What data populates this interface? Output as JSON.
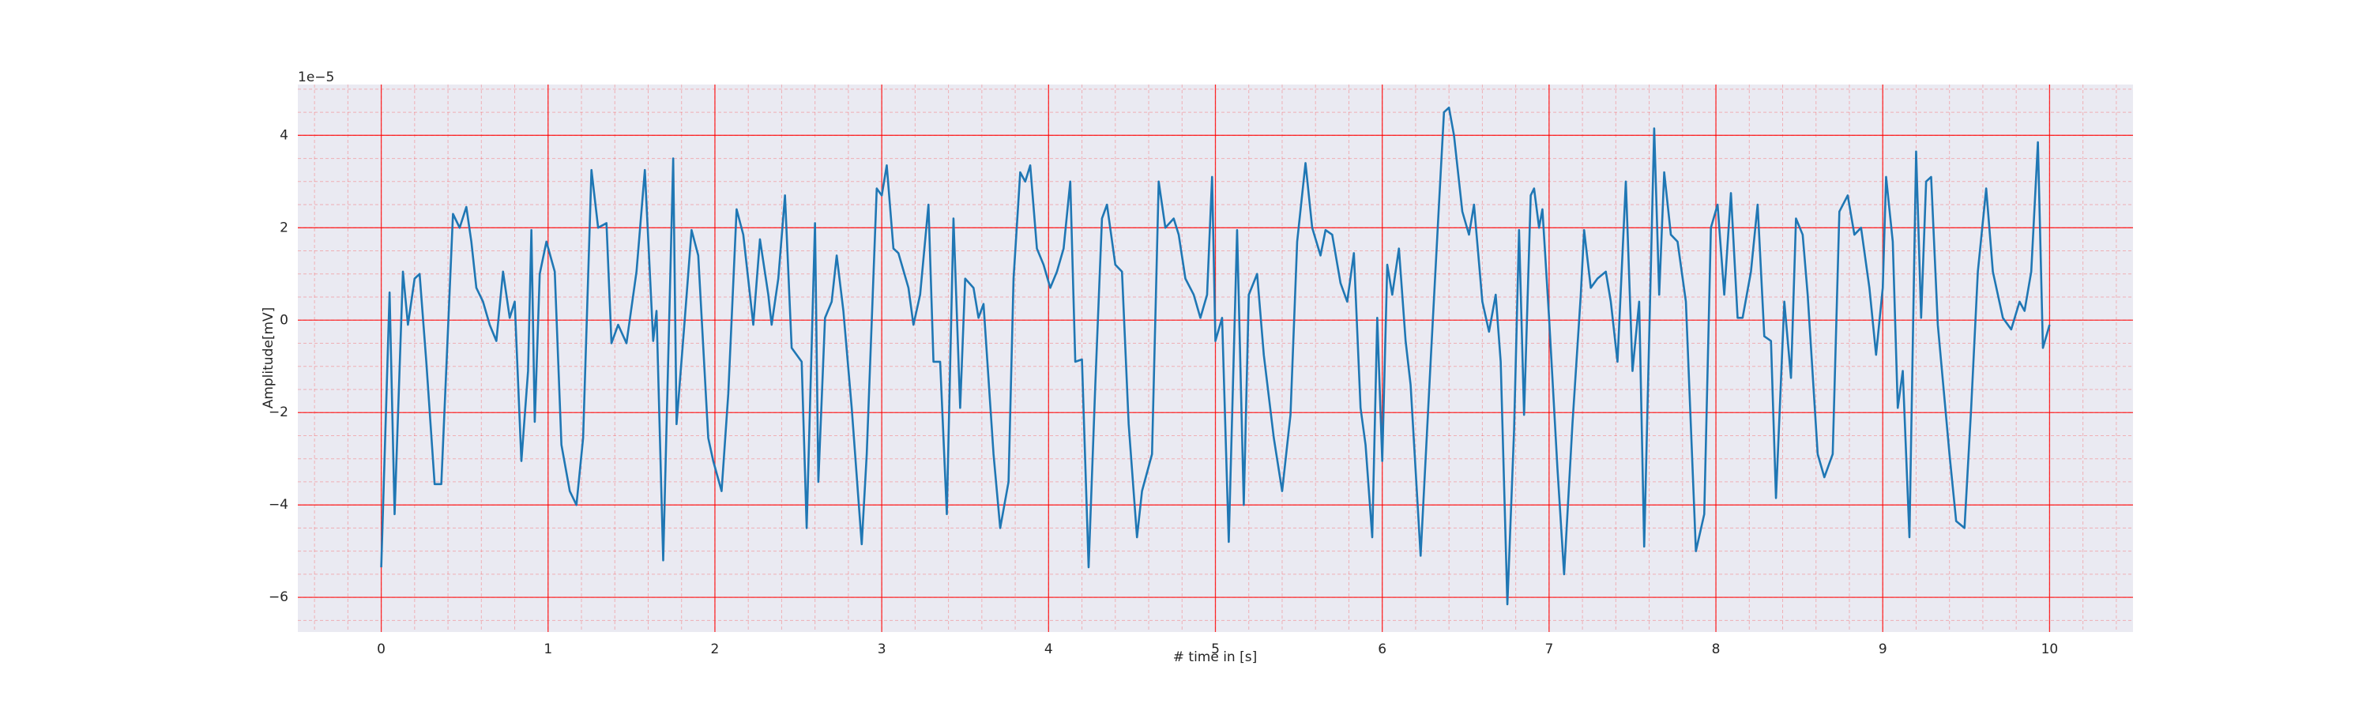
{
  "chart_data": {
    "type": "line",
    "xlabel": "# time in [s]",
    "ylabel": "Amplitude[mV]",
    "y_offset_label": "1e−5",
    "color": "#1f77b4",
    "grid": true,
    "grid_color": "#ff0000",
    "minor_grid": {
      "x_divisions": 5,
      "y_divisions": 4
    },
    "xlim": [
      -0.5,
      10.5
    ],
    "ylim": [
      -6.75,
      5.1
    ],
    "xticks": [
      0,
      1,
      2,
      3,
      4,
      5,
      6,
      7,
      8,
      9,
      10
    ],
    "yticks": [
      {
        "value": -6,
        "label": "−6"
      },
      {
        "value": -4,
        "label": "−4"
      },
      {
        "value": -2,
        "label": "−2"
      },
      0,
      2,
      4
    ],
    "x": [
      0,
      0.05,
      0.08,
      0.13,
      0.16,
      0.2,
      0.23,
      0.27,
      0.32,
      0.36,
      0.43,
      0.47,
      0.51,
      0.54,
      0.57,
      0.61,
      0.65,
      0.69,
      0.73,
      0.77,
      0.8,
      0.84,
      0.88,
      0.9,
      0.92,
      0.95,
      0.99,
      1.04,
      1.08,
      1.13,
      1.17,
      1.21,
      1.26,
      1.3,
      1.35,
      1.38,
      1.42,
      1.47,
      1.53,
      1.58,
      1.63,
      1.65,
      1.69,
      1.75,
      1.77,
      1.82,
      1.86,
      1.9,
      1.96,
      1.99,
      2.04,
      2.08,
      2.13,
      2.17,
      2.23,
      2.27,
      2.32,
      2.34,
      2.38,
      2.42,
      2.46,
      2.49,
      2.52,
      2.55,
      2.6,
      2.62,
      2.66,
      2.7,
      2.73,
      2.77,
      2.82,
      2.88,
      2.91,
      2.97,
      3.0,
      3.03,
      3.07,
      3.1,
      3.16,
      3.19,
      3.23,
      3.28,
      3.31,
      3.35,
      3.39,
      3.43,
      3.47,
      3.5,
      3.55,
      3.58,
      3.61,
      3.67,
      3.71,
      3.76,
      3.79,
      3.83,
      3.86,
      3.89,
      3.93,
      3.97,
      4.01,
      4.05,
      4.09,
      4.13,
      4.16,
      4.2,
      4.24,
      4.28,
      4.32,
      4.35,
      4.4,
      4.44,
      4.48,
      4.53,
      4.56,
      4.62,
      4.66,
      4.7,
      4.75,
      4.78,
      4.82,
      4.87,
      4.91,
      4.95,
      4.98,
      5.0,
      5.04,
      5.08,
      5.13,
      5.17,
      5.2,
      5.25,
      5.29,
      5.35,
      5.4,
      5.45,
      5.49,
      5.54,
      5.58,
      5.63,
      5.66,
      5.7,
      5.75,
      5.79,
      5.83,
      5.87,
      5.9,
      5.94,
      5.97,
      6.0,
      6.03,
      6.06,
      6.1,
      6.14,
      6.17,
      6.23,
      6.29,
      6.34,
      6.37,
      6.4,
      6.43,
      6.48,
      6.52,
      6.55,
      6.6,
      6.64,
      6.68,
      6.71,
      6.75,
      6.79,
      6.82,
      6.85,
      6.89,
      6.91,
      6.94,
      6.96,
      7.0,
      7.05,
      7.09,
      7.14,
      7.19,
      7.21,
      7.25,
      7.29,
      7.34,
      7.37,
      7.41,
      7.46,
      7.5,
      7.54,
      7.57,
      7.63,
      7.66,
      7.69,
      7.73,
      7.77,
      7.82,
      7.88,
      7.93,
      7.97,
      8.01,
      8.05,
      8.09,
      8.13,
      8.16,
      8.21,
      8.25,
      8.29,
      8.33,
      8.36,
      8.41,
      8.45,
      8.48,
      8.52,
      8.55,
      8.61,
      8.65,
      8.7,
      8.74,
      8.79,
      8.83,
      8.87,
      8.92,
      8.96,
      9.0,
      9.02,
      9.06,
      9.09,
      9.12,
      9.16,
      9.2,
      9.23,
      9.26,
      9.29,
      9.33,
      9.4,
      9.44,
      9.49,
      9.53,
      9.57,
      9.62,
      9.66,
      9.72,
      9.77,
      9.82,
      9.85,
      9.89,
      9.93,
      9.96,
      10.0
    ],
    "values": [
      -5.35,
      0.6,
      -4.2,
      1.05,
      -0.1,
      0.9,
      1.0,
      -0.9,
      -3.55,
      -3.55,
      2.3,
      2.0,
      2.45,
      1.7,
      0.7,
      0.4,
      -0.1,
      -0.45,
      1.05,
      0.05,
      0.4,
      -3.05,
      -1.1,
      1.95,
      -2.2,
      1.0,
      1.7,
      1.05,
      -2.7,
      -3.7,
      -4.0,
      -2.55,
      3.25,
      2.0,
      2.1,
      -0.5,
      -0.1,
      -0.5,
      1.05,
      3.25,
      -0.45,
      0.2,
      -5.2,
      3.5,
      -2.25,
      0.05,
      1.95,
      1.4,
      -2.55,
      -3.05,
      -3.7,
      -1.6,
      2.4,
      1.85,
      -0.1,
      1.75,
      0.55,
      -0.1,
      0.9,
      2.7,
      -0.6,
      -0.75,
      -0.9,
      -4.5,
      2.1,
      -3.5,
      0.05,
      0.4,
      1.4,
      0.2,
      -1.9,
      -4.85,
      -2.9,
      2.85,
      2.7,
      3.35,
      1.55,
      1.45,
      0.7,
      -0.1,
      0.55,
      2.5,
      -0.9,
      -0.9,
      -4.2,
      2.2,
      -1.9,
      0.9,
      0.7,
      0.05,
      0.35,
      -2.9,
      -4.5,
      -3.5,
      0.9,
      3.2,
      3.0,
      3.35,
      1.55,
      1.2,
      0.7,
      1.05,
      1.55,
      3.0,
      -0.9,
      -0.85,
      -5.35,
      -1.4,
      2.2,
      2.5,
      1.2,
      1.05,
      -2.25,
      -4.7,
      -3.7,
      -2.9,
      3.0,
      2.0,
      2.2,
      1.85,
      0.9,
      0.55,
      0.05,
      0.55,
      3.1,
      -0.45,
      0.05,
      -4.8,
      1.95,
      -4.0,
      0.55,
      1.0,
      -0.75,
      -2.55,
      -3.7,
      -2.05,
      1.7,
      3.4,
      2.0,
      1.4,
      1.95,
      1.85,
      0.8,
      0.4,
      1.45,
      -1.9,
      -2.7,
      -4.7,
      0.05,
      -3.05,
      1.2,
      0.55,
      1.55,
      -0.45,
      -1.4,
      -5.1,
      -0.9,
      2.5,
      4.5,
      4.6,
      4.0,
      2.35,
      1.85,
      2.5,
      0.4,
      -0.25,
      0.55,
      -0.9,
      -6.15,
      -2.4,
      1.95,
      -2.05,
      2.7,
      2.85,
      2.0,
      2.4,
      0.05,
      -3.2,
      -5.5,
      -2.25,
      0.55,
      1.95,
      0.7,
      0.9,
      1.05,
      0.4,
      -0.9,
      3.0,
      -1.1,
      0.4,
      -4.9,
      4.15,
      0.55,
      3.2,
      1.85,
      1.7,
      0.4,
      -5.0,
      -4.2,
      2.0,
      2.5,
      0.55,
      2.75,
      0.05,
      0.05,
      1.05,
      2.5,
      -0.35,
      -0.45,
      -3.85,
      0.4,
      -1.25,
      2.2,
      1.85,
      0.55,
      -2.9,
      -3.4,
      -2.9,
      2.35,
      2.7,
      1.85,
      2.0,
      0.7,
      -0.75,
      0.7,
      3.1,
      1.7,
      -1.9,
      -1.1,
      -4.7,
      3.65,
      0.05,
      3.0,
      3.1,
      -0.1,
      -2.9,
      -4.35,
      -4.5,
      -1.9,
      1.05,
      2.85,
      1.05,
      0.05,
      -0.2,
      0.4,
      0.2,
      1.05,
      3.85,
      -0.6,
      -0.1
    ]
  }
}
